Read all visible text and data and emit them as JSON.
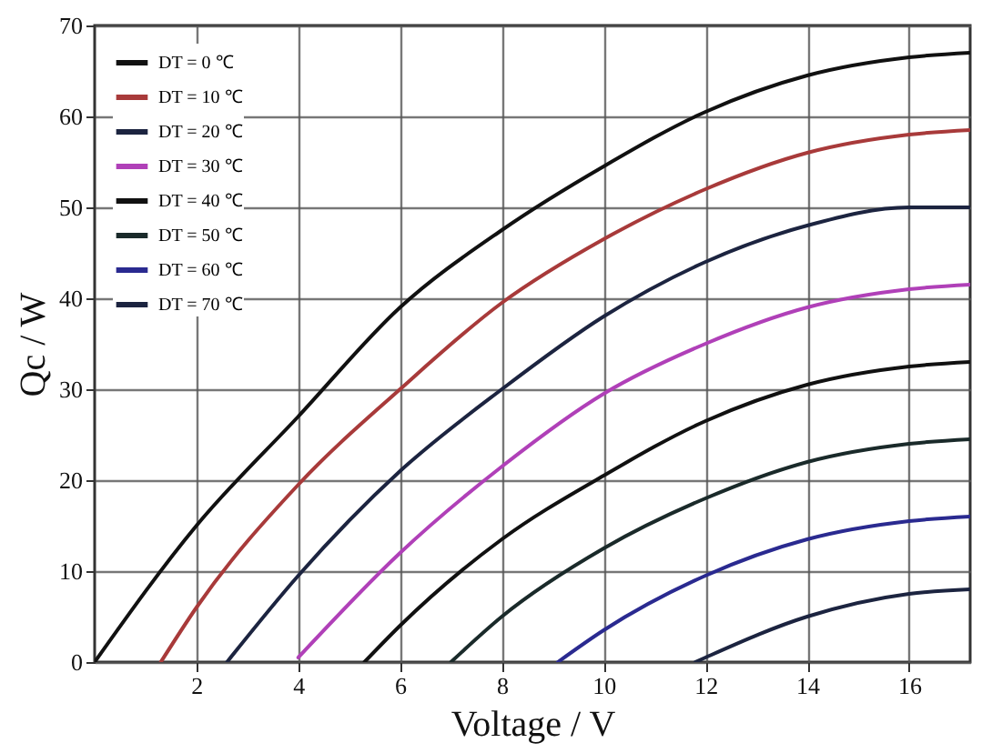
{
  "chart_data": {
    "type": "line",
    "xlabel": "Voltage / V",
    "ylabel": "Qc / W",
    "xlim": [
      0,
      17.2
    ],
    "xticks": [
      2,
      4,
      6,
      8,
      10,
      12,
      14,
      16
    ],
    "ylim": [
      0,
      70
    ],
    "yticks": [
      0,
      10,
      20,
      30,
      40,
      50,
      60,
      70
    ],
    "grid": true,
    "legend": "top left",
    "marker": "none",
    "line_style": "solid",
    "series": [
      {
        "name": "DT = 0 ℃",
        "color": "#111111",
        "x": [
          0,
          2,
          4,
          6,
          8,
          10,
          12,
          14,
          16,
          17.2
        ],
        "values": [
          0,
          15,
          27,
          39,
          47.5,
          54.5,
          60.5,
          64.5,
          66.5,
          67
        ]
      },
      {
        "name": "DT = 10 ℃",
        "color": "#a83a3a",
        "x": [
          1.3,
          2,
          4,
          6,
          8,
          10,
          12,
          14,
          16,
          17.2
        ],
        "values": [
          0,
          6,
          19.5,
          30,
          39.5,
          46.5,
          52,
          56,
          58,
          58.5
        ]
      },
      {
        "name": "DT = 20 ℃",
        "color": "#1c2440",
        "x": [
          2.6,
          4,
          6,
          8,
          10,
          12,
          14,
          16,
          17.2
        ],
        "values": [
          0,
          9.5,
          21,
          30,
          38,
          44,
          48,
          50,
          50
        ]
      },
      {
        "name": "DT = 30 ℃",
        "color": "#b040b8",
        "x": [
          4,
          6,
          8,
          10,
          12,
          14,
          16,
          17.2
        ],
        "values": [
          0.5,
          12,
          21.5,
          29.5,
          35,
          39,
          41,
          41.5
        ]
      },
      {
        "name": "DT = 40 ℃",
        "color": "#111111",
        "x": [
          5.3,
          6,
          8,
          10,
          12,
          14,
          16,
          17.2
        ],
        "values": [
          0,
          4,
          13.5,
          20.5,
          26.5,
          30.5,
          32.5,
          33
        ]
      },
      {
        "name": "DT = 50 ℃",
        "color": "#1a2a2a",
        "x": [
          7,
          8,
          10,
          12,
          14,
          16,
          17.2
        ],
        "values": [
          0,
          5,
          12.5,
          18,
          22,
          24,
          24.5
        ]
      },
      {
        "name": "DT = 60 ℃",
        "color": "#2a2a90",
        "x": [
          9.1,
          10,
          12,
          14,
          16,
          17.2
        ],
        "values": [
          0,
          3.5,
          9.5,
          13.5,
          15.5,
          16
        ]
      },
      {
        "name": "DT = 70 ℃",
        "color": "#1c2440",
        "x": [
          11.8,
          12,
          14,
          16,
          17.2
        ],
        "values": [
          0,
          0.5,
          5,
          7.5,
          8
        ]
      }
    ]
  }
}
